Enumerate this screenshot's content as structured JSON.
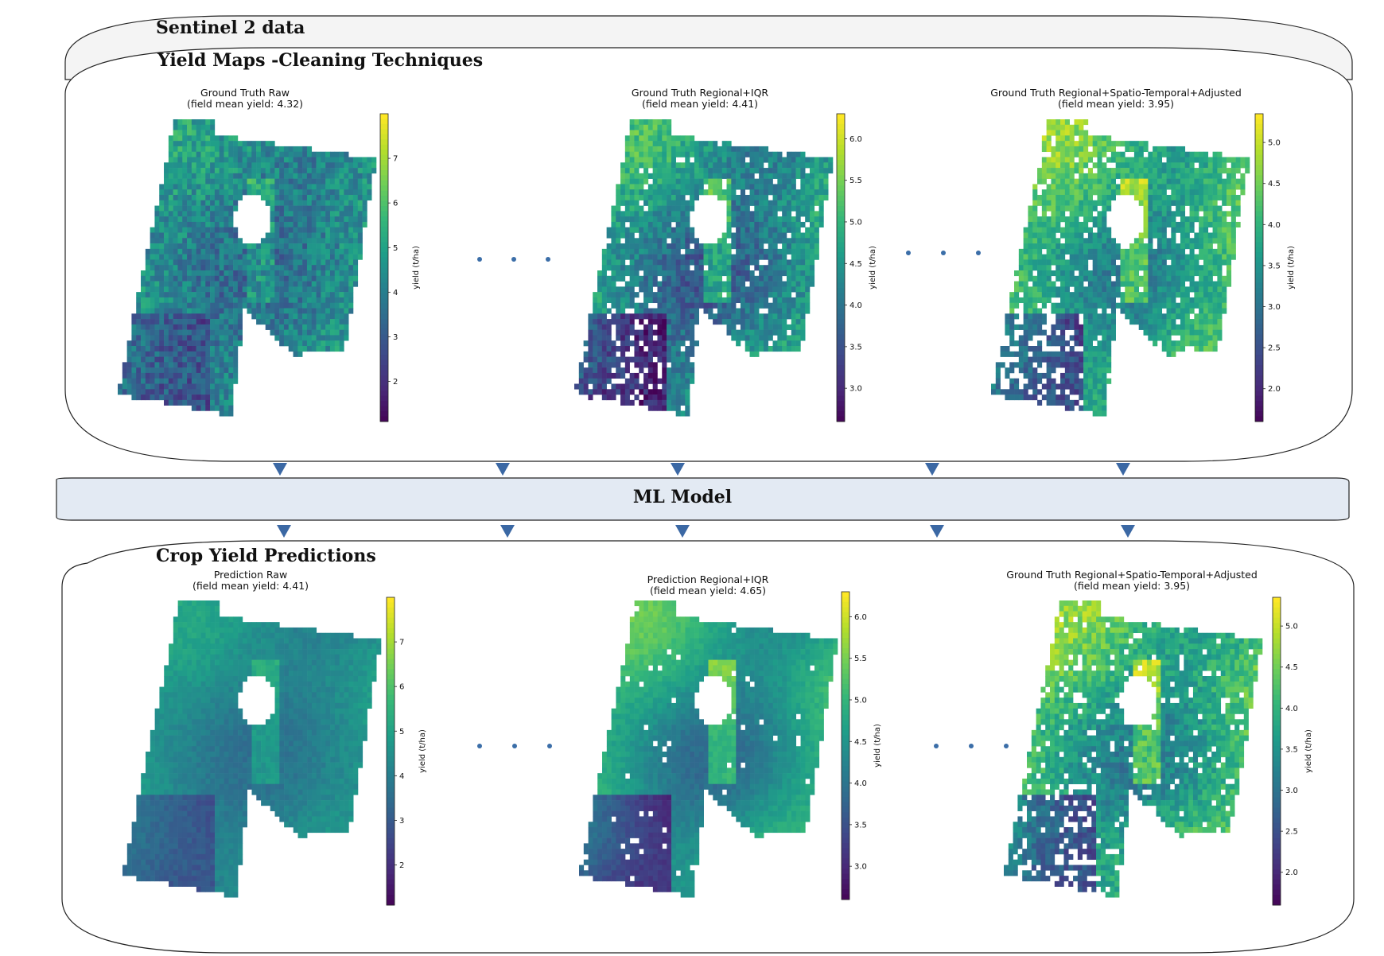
{
  "top_section": {
    "outer_title": "Sentinel 2 data",
    "inner_title": "Yield Maps -Cleaning Techniques"
  },
  "ml_model": {
    "label": "ML Model"
  },
  "bottom_section": {
    "title": "Crop Yield Predictions"
  },
  "colorbar_label": "yield (t/ha)",
  "colormap": [
    "#440154",
    "#482878",
    "#3e4989",
    "#31688e",
    "#26828e",
    "#1f9e89",
    "#35b779",
    "#6ece58",
    "#b5de2b",
    "#fde725"
  ],
  "ellipsis_color": "#3b6ea8",
  "arrow_color": "#3b68a4",
  "maps": [
    {
      "id": "gt-raw",
      "title_line1": "Ground Truth Raw",
      "title_line2": "(field mean yield: 4.32)",
      "vmin": 1.1,
      "vmax": 8.0,
      "mean": 4.32,
      "ticks": [
        "2",
        "3",
        "4",
        "5",
        "6",
        "7"
      ],
      "tick_values": [
        2,
        3,
        4,
        5,
        6,
        7
      ],
      "gaps": 0.0,
      "noise": 0.55
    },
    {
      "id": "gt-regional-iqr",
      "title_line1": "Ground Truth Regional+IQR",
      "title_line2": "(field mean yield: 4.41)",
      "vmin": 2.6,
      "vmax": 6.3,
      "mean": 4.41,
      "ticks": [
        "3.0",
        "3.5",
        "4.0",
        "4.5",
        "5.0",
        "5.5",
        "6.0"
      ],
      "tick_values": [
        3.0,
        3.5,
        4.0,
        4.5,
        5.0,
        5.5,
        6.0
      ],
      "gaps": 0.05,
      "noise": 0.45
    },
    {
      "id": "gt-regional-st-adjusted",
      "title_line1": "Ground Truth Regional+Spatio-Temporal+Adjusted",
      "title_line2": "(field mean yield: 3.95)",
      "vmin": 1.6,
      "vmax": 5.35,
      "mean": 3.95,
      "ticks": [
        "2.0",
        "2.5",
        "3.0",
        "3.5",
        "4.0",
        "4.5",
        "5.0"
      ],
      "tick_values": [
        2.0,
        2.5,
        3.0,
        3.5,
        4.0,
        4.5,
        5.0
      ],
      "gaps": 0.08,
      "noise": 0.4
    },
    {
      "id": "pred-raw",
      "title_line1": "Prediction Raw",
      "title_line2": "(field mean yield: 4.41)",
      "vmin": 1.1,
      "vmax": 8.0,
      "mean": 4.41,
      "ticks": [
        "2",
        "3",
        "4",
        "5",
        "6",
        "7"
      ],
      "tick_values": [
        2,
        3,
        4,
        5,
        6,
        7
      ],
      "gaps": 0.0,
      "noise": 0.15
    },
    {
      "id": "pred-regional-iqr",
      "title_line1": "Prediction Regional+IQR",
      "title_line2": "(field mean yield: 4.65)",
      "vmin": 2.6,
      "vmax": 6.3,
      "mean": 4.65,
      "ticks": [
        "3.0",
        "3.5",
        "4.0",
        "4.5",
        "5.0",
        "5.5",
        "6.0"
      ],
      "tick_values": [
        3.0,
        3.5,
        4.0,
        4.5,
        5.0,
        5.5,
        6.0
      ],
      "gaps": 0.02,
      "noise": 0.15
    },
    {
      "id": "pred-regional-st-adjusted",
      "title_line1": "Ground Truth Regional+Spatio-Temporal+Adjusted",
      "title_line2": "(field mean yield: 3.95)",
      "vmin": 1.6,
      "vmax": 5.35,
      "mean": 3.95,
      "ticks": [
        "2.0",
        "2.5",
        "3.0",
        "3.5",
        "4.0",
        "4.5",
        "5.0"
      ],
      "tick_values": [
        2.0,
        2.5,
        3.0,
        3.5,
        4.0,
        4.5,
        5.0
      ],
      "gaps": 0.08,
      "noise": 0.4
    }
  ]
}
